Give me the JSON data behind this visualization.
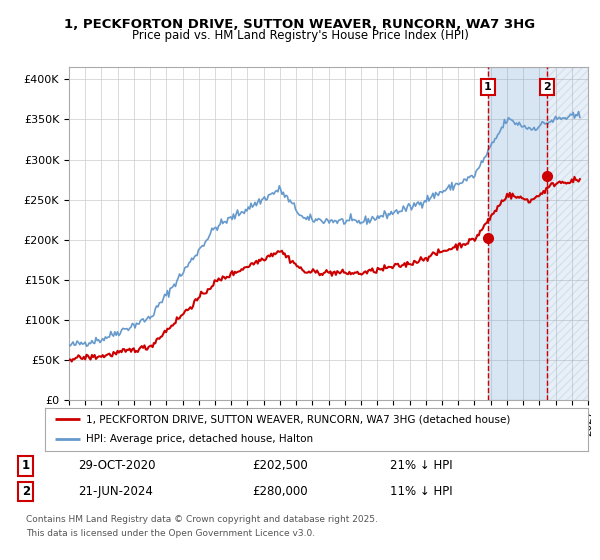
{
  "title_line1": "1, PECKFORTON DRIVE, SUTTON WEAVER, RUNCORN, WA7 3HG",
  "title_line2": "Price paid vs. HM Land Registry's House Price Index (HPI)",
  "ylabel_ticks": [
    "£0",
    "£50K",
    "£100K",
    "£150K",
    "£200K",
    "£250K",
    "£300K",
    "£350K",
    "£400K"
  ],
  "ytick_values": [
    0,
    50000,
    100000,
    150000,
    200000,
    250000,
    300000,
    350000,
    400000
  ],
  "ylim": [
    0,
    415000
  ],
  "xlim_start": 1995.0,
  "xlim_end": 2027.0,
  "hpi_color": "#6699cc",
  "price_color": "#cc0000",
  "marker1_date": "29-OCT-2020",
  "marker1_price": 202500,
  "marker1_label": "1",
  "marker1_x": 2020.83,
  "marker1_hpi_pct": "21% ↓ HPI",
  "marker2_date": "21-JUN-2024",
  "marker2_price": 280000,
  "marker2_label": "2",
  "marker2_x": 2024.47,
  "marker2_hpi_pct": "11% ↓ HPI",
  "legend_line1": "1, PECKFORTON DRIVE, SUTTON WEAVER, RUNCORN, WA7 3HG (detached house)",
  "legend_line2": "HPI: Average price, detached house, Halton",
  "footer1": "Contains HM Land Registry data © Crown copyright and database right 2025.",
  "footer2": "This data is licensed under the Open Government Licence v3.0.",
  "background_color": "#ffffff",
  "grid_color": "#cccccc",
  "shade_color": "#ddeeff"
}
